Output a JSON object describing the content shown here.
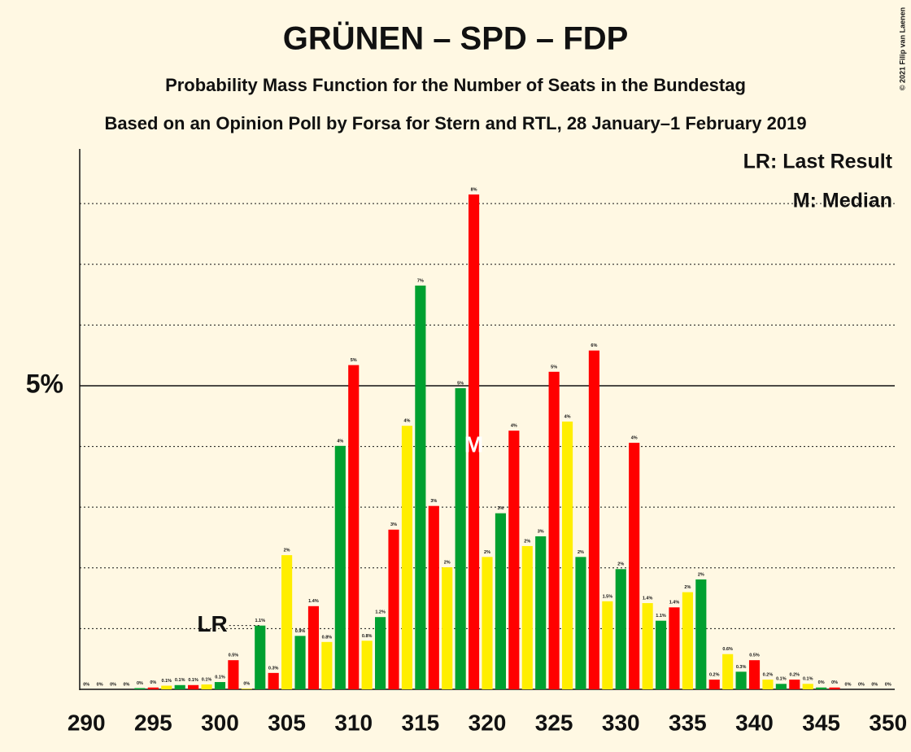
{
  "chart_data": {
    "type": "bar",
    "title": "GRÜNEN – SPD – FDP",
    "subtitle": "Probability Mass Function for the Number of Seats in the Bundestag",
    "subtitle2": "Based on an Opinion Poll by Forsa for Stern and RTL, 28 January–1 February 2019",
    "copyright": "© 2021 Filip van Laenen",
    "legend": [
      "LR: Last Result",
      "M: Median"
    ],
    "x": [
      290,
      291,
      292,
      293,
      294,
      295,
      296,
      297,
      298,
      299,
      300,
      301,
      302,
      303,
      304,
      305,
      306,
      307,
      308,
      309,
      310,
      311,
      312,
      313,
      314,
      315,
      316,
      317,
      318,
      319,
      320,
      321,
      322,
      323,
      324,
      325,
      326,
      327,
      328,
      329,
      330,
      331,
      332,
      333,
      334,
      335,
      336,
      337,
      338,
      339,
      340,
      341,
      342,
      343,
      344,
      345,
      346,
      347,
      348,
      349,
      350
    ],
    "values": [
      0,
      0,
      0,
      0,
      0.02,
      0.03,
      0.06,
      0.07,
      0.07,
      0.08,
      0.12,
      0.48,
      0.01,
      1.05,
      0.27,
      2.21,
      0.88,
      1.37,
      0.78,
      4.01,
      5.34,
      0.8,
      1.19,
      2.63,
      4.34,
      6.65,
      3.02,
      2.01,
      4.96,
      8.15,
      2.18,
      2.9,
      4.26,
      2.36,
      2.52,
      5.23,
      4.41,
      2.18,
      5.58,
      1.45,
      1.98,
      4.06,
      1.42,
      1.13,
      1.35,
      1.6,
      1.81,
      0.16,
      0.58,
      0.29,
      0.48,
      0.16,
      0.09,
      0.16,
      0.09,
      0.03,
      0.03,
      0,
      0,
      0,
      0
    ],
    "value_labels": [
      "0%",
      "0%",
      "0%",
      "0%",
      "0%",
      "0%",
      "0.1%",
      "0.1%",
      "0.1%",
      "0.1%",
      "0.1%",
      "0.5%",
      "0%",
      "1.1%",
      "0.3%",
      "2%",
      "0.9%",
      "1.4%",
      "0.8%",
      "4%",
      "5%",
      "0.8%",
      "1.2%",
      "3%",
      "4%",
      "7%",
      "3%",
      "2%",
      "5%",
      "8%",
      "2%",
      "3%",
      "4%",
      "2%",
      "3%",
      "5%",
      "4%",
      "2%",
      "6%",
      "1.5%",
      "2%",
      "4%",
      "1.4%",
      "1.1%",
      "1.4%",
      "2%",
      "2%",
      "0.2%",
      "0.6%",
      "0.3%",
      "0.5%",
      "0.2%",
      "0.1%",
      "0.2%",
      "0.1%",
      "0%",
      "0%",
      "0%",
      "0%",
      "0%",
      "0%"
    ],
    "color_cycle": [
      "#ffee00",
      "#00a030",
      "#ff0000"
    ],
    "xlim": [
      289.5,
      350.5
    ],
    "xticks": [
      290,
      295,
      300,
      305,
      310,
      315,
      320,
      325,
      330,
      335,
      340,
      345,
      350
    ],
    "ylim": [
      0,
      8.9
    ],
    "yticks": [
      {
        "value": 5,
        "label": "5%"
      }
    ],
    "grid_lines": [
      1,
      2,
      3,
      4,
      6,
      7,
      8
    ],
    "last_result": 303,
    "last_result_label": "LR",
    "median": 319,
    "median_label": "M"
  }
}
